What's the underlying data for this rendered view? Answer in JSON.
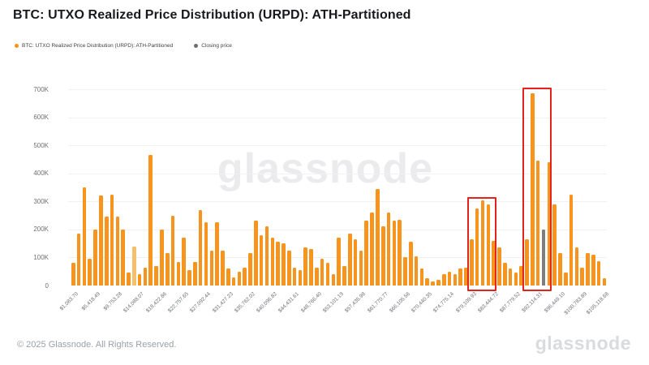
{
  "title": "BTC: UTXO Realized Price Distribution (URPD): ATH-Partitioned",
  "watermark": "glassnode",
  "legend": [
    {
      "label": "BTC: UTXO Realized Price Distribution (URPD): ATH-Partitioned",
      "color": "#f7941d"
    },
    {
      "label": "Closing price",
      "color": "#6b6e71"
    }
  ],
  "footer": {
    "copyright": "© 2025 Glassnode. All Rights Reserved.",
    "logo": "glassnode"
  },
  "chart_data": {
    "type": "bar",
    "title": "BTC: UTXO Realized Price Distribution (URPD): ATH-Partitioned",
    "xlabel": "",
    "ylabel": "",
    "ylim": [
      0,
      700000
    ],
    "grid": "horizontal",
    "legend_position": "top-left",
    "y_tick_labels": [
      "700K",
      "600K",
      "500K",
      "400K",
      "300K",
      "200K",
      "100K",
      "0"
    ],
    "x_tick_labels": [
      "$1,083.70",
      "$5,418.49",
      "$9,753.28",
      "$14,088.07",
      "$18,422.86",
      "$22,757.65",
      "$27,092.44",
      "$31,427.23",
      "$35,762.02",
      "$40,096.82",
      "$44,431.61",
      "$48,766.40",
      "$53,101.19",
      "$57,435.98",
      "$61,770.77",
      "$66,105.56",
      "$70,440.35",
      "$74,775.14",
      "$79,109.93",
      "$83,444.72",
      "$87,779.52",
      "$92,114.31",
      "$96,449.10",
      "$100,783.89",
      "$105,118.68"
    ],
    "x_tick_every_n_bars": 4,
    "values_thousands": [
      80,
      185,
      350,
      95,
      200,
      320,
      245,
      325,
      245,
      200,
      45,
      140,
      40,
      65,
      465,
      70,
      200,
      115,
      250,
      85,
      170,
      55,
      85,
      270,
      225,
      125,
      225,
      125,
      60,
      30,
      50,
      65,
      115,
      230,
      180,
      210,
      170,
      155,
      150,
      125,
      65,
      55,
      135,
      130,
      65,
      95,
      80,
      40,
      170,
      70,
      185,
      165,
      125,
      230,
      260,
      345,
      210,
      260,
      230,
      235,
      100,
      155,
      105,
      60,
      25,
      15,
      20,
      40,
      50,
      40,
      60,
      65,
      165,
      275,
      305,
      290,
      160,
      135,
      80,
      60,
      45,
      70,
      165,
      685,
      445,
      200,
      440,
      290,
      115,
      45,
      325,
      135,
      65,
      115,
      110,
      88,
      25
    ],
    "closing_price_bar_index": 85,
    "closing_price_label": "Closing price",
    "light_bar_index": 11,
    "highlight_boxes": [
      {
        "from_bar": 73,
        "to_bar": 76,
        "top_value_thousands": 315
      },
      {
        "from_bar": 83,
        "to_bar": 86,
        "top_value_thousands": 705
      }
    ],
    "colors": {
      "bar": "#f7941d",
      "bar_light": "#f5c06e",
      "closing_price_bar": "#7d7d7d",
      "highlight_box": "#e3241d"
    }
  }
}
